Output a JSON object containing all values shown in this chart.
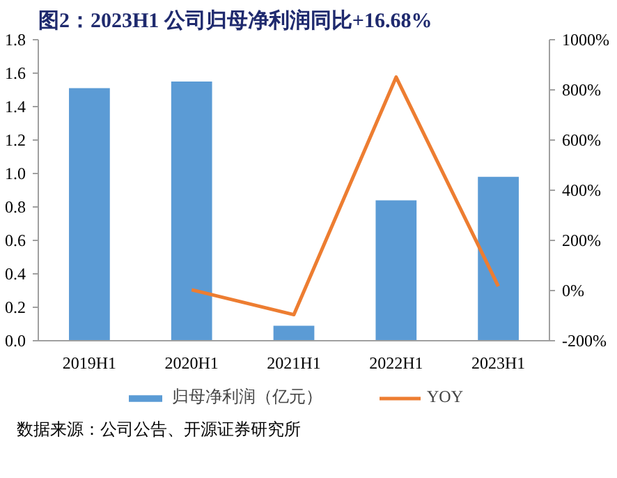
{
  "chart_data": {
    "type": "bar",
    "title": "图2：2023H1 公司归母净利润同比+16.68%",
    "categories": [
      "2019H1",
      "2020H1",
      "2021H1",
      "2022H1",
      "2023H1"
    ],
    "series": [
      {
        "name": "归母净利润（亿元）",
        "color": "#5b9bd5",
        "values": [
          1.51,
          1.55,
          0.09,
          0.84,
          0.98
        ]
      },
      {
        "name": "YOY",
        "type": "line",
        "axis": "y2",
        "color": "#ed7d31",
        "values": [
          null,
          3,
          -96,
          851,
          17
        ]
      }
    ],
    "ylim": [
      0,
      1.8
    ],
    "yticks": [
      {
        "value": 0,
        "label": "0.0"
      },
      0.2,
      0.4,
      0.6,
      0.8,
      {
        "value": 1,
        "label": "1.0"
      },
      1.2,
      1.4,
      1.6,
      1.8
    ],
    "y2lim": [
      -200,
      1000
    ],
    "y2ticks": [
      {
        "value": -200,
        "label": "-200%"
      },
      {
        "value": 0,
        "label": "0%"
      },
      {
        "value": 200,
        "label": "200%"
      },
      {
        "value": 400,
        "label": "400%"
      },
      {
        "value": 600,
        "label": "600%"
      },
      {
        "value": 800,
        "label": "800%"
      },
      {
        "value": 1000,
        "label": "1000%"
      }
    ],
    "grid": false,
    "legend": "bottom",
    "annotations": [
      "数据来源：公司公告、开源证券研究所"
    ]
  }
}
